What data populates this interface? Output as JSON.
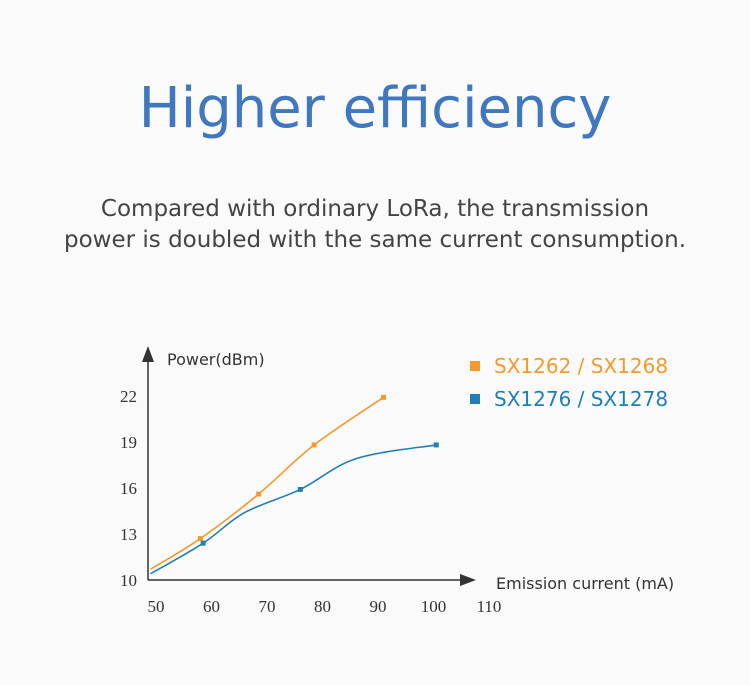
{
  "header": {
    "title": "Higher efficiency",
    "subtitle_line1": "Compared with ordinary LoRa, the transmission",
    "subtitle_line2": "power is doubled with the same current consumption."
  },
  "chart_data": {
    "type": "line",
    "xlabel": "Emission current (mA)",
    "ylabel": "Power(dBm)",
    "xlim": [
      50,
      110
    ],
    "ylim": [
      10,
      24
    ],
    "xticks": [
      50,
      60,
      70,
      80,
      90,
      100,
      110
    ],
    "yticks": [
      10,
      13,
      16,
      19,
      22
    ],
    "grid": false,
    "legend_position": "top-right",
    "series": [
      {
        "name": "SX1262 / SX1268",
        "color": "#f39a2b",
        "x": [
          49,
          58,
          68.5,
          78.5,
          91
        ],
        "y": [
          10.7,
          12.7,
          15.6,
          18.8,
          21.9
        ],
        "markers": [
          [
            58,
            12.7
          ],
          [
            68.5,
            15.6
          ],
          [
            78.5,
            18.8
          ],
          [
            91,
            21.9
          ]
        ]
      },
      {
        "name": "SX1276 / SX1278",
        "color": "#1f7fb8",
        "x": [
          49,
          58.5,
          66,
          76,
          86,
          100.5
        ],
        "y": [
          10.4,
          12.4,
          14.4,
          15.9,
          17.9,
          18.8
        ],
        "markers": [
          [
            58.5,
            12.4
          ],
          [
            76,
            15.9
          ],
          [
            100.5,
            18.8
          ]
        ]
      }
    ]
  }
}
